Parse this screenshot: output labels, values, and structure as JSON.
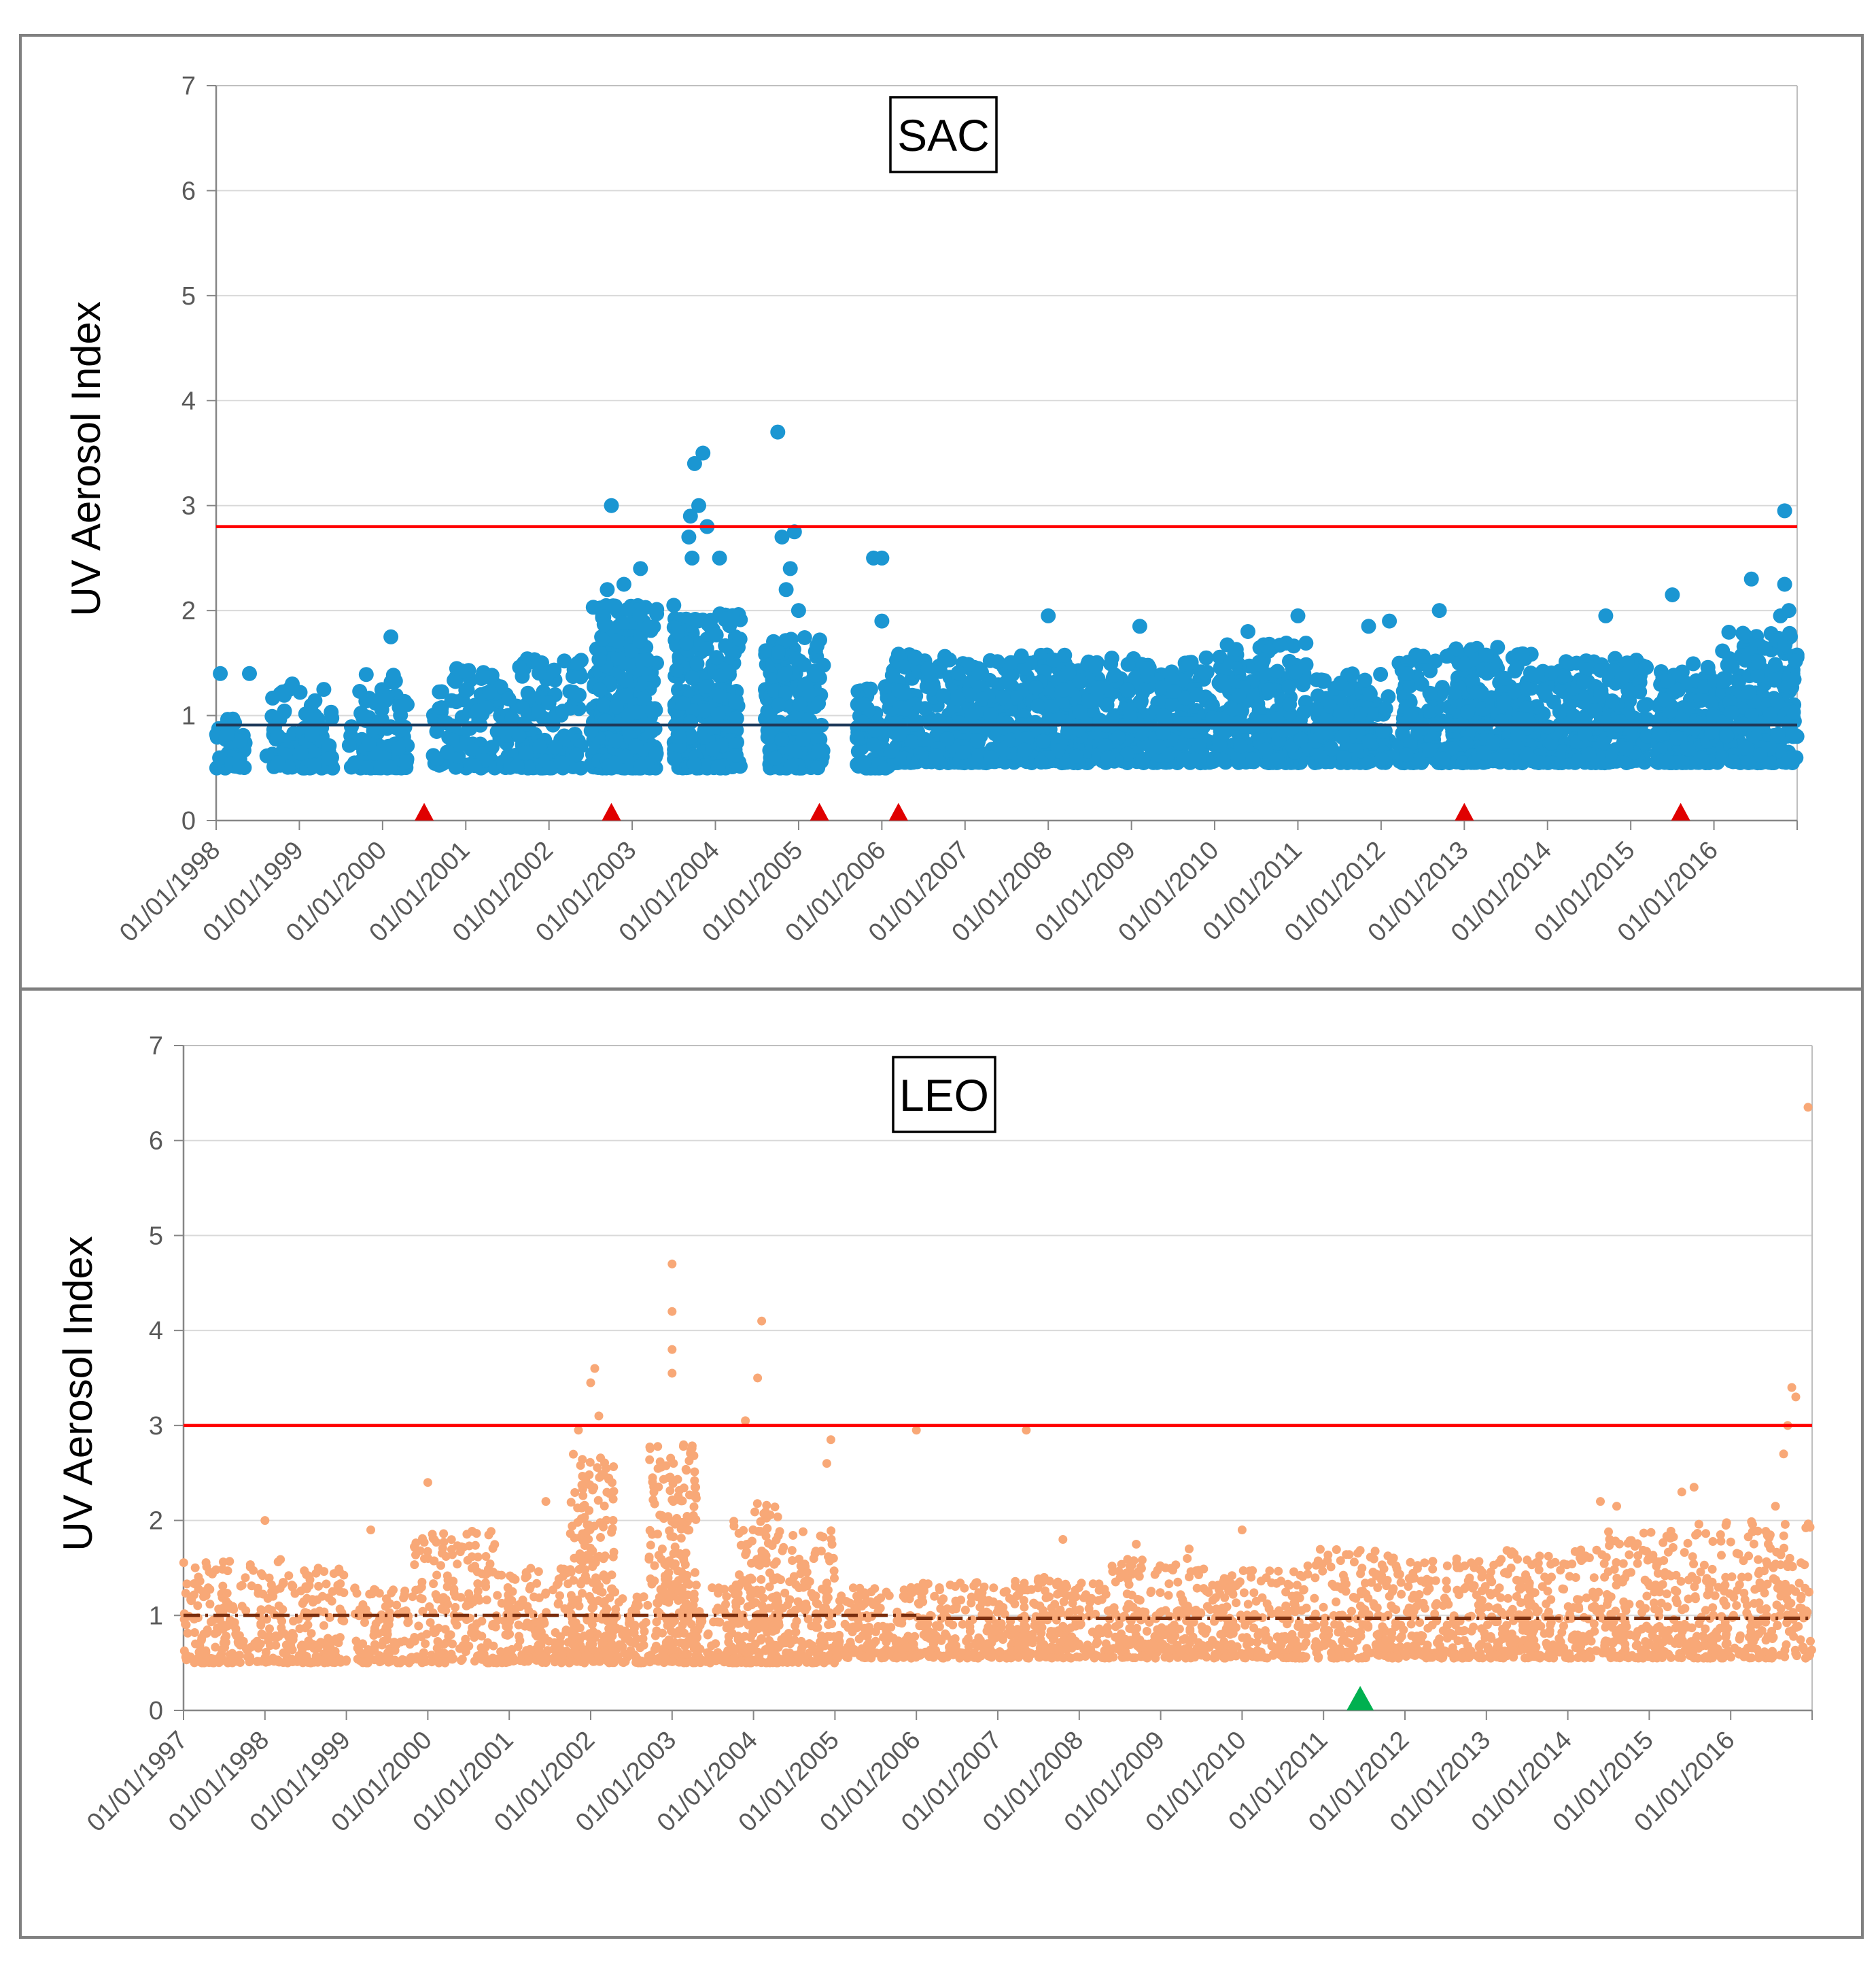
{
  "chart_data": [
    {
      "type": "scatter",
      "title": "SAC",
      "xlabel": "",
      "ylabel": "UV Aerosol Index",
      "ylim": [
        0,
        7
      ],
      "yticks": [
        "0",
        "1",
        "2",
        "3",
        "4",
        "5",
        "6",
        "7"
      ],
      "xlim_year": [
        1998.0,
        2017.0
      ],
      "xtick_labels": [
        "01/01/1998",
        "01/01/1999",
        "01/01/2000",
        "01/01/2001",
        "01/01/2002",
        "01/01/2003",
        "01/01/2004",
        "01/01/2005",
        "01/01/2006",
        "01/01/2007",
        "01/01/2008",
        "01/01/2009",
        "01/01/2010",
        "01/01/2011",
        "01/01/2012",
        "01/01/2013",
        "01/01/2014",
        "01/01/2015",
        "01/01/2016"
      ],
      "grid": true,
      "colors": {
        "points": "#1b96d2",
        "threshold": "#ff0000",
        "mean": "#1f3a5a",
        "marker": "#e00000"
      },
      "threshold_value": 2.8,
      "mean_segments": [
        {
          "x0": 1998.0,
          "x1": 2006.3,
          "value": 0.91
        },
        {
          "x0": 2006.3,
          "x1": 2017.0,
          "value": 0.91
        }
      ],
      "event_markers_year": [
        2000.5,
        2002.75,
        2005.25,
        2006.2,
        2013.0,
        2015.6
      ],
      "high_points": [
        {
          "x": 1998.05,
          "y": 1.4
        },
        {
          "x": 1998.4,
          "y": 1.4
        },
        {
          "x": 2000.1,
          "y": 1.75
        },
        {
          "x": 2002.75,
          "y": 3.0
        },
        {
          "x": 2002.7,
          "y": 2.2
        },
        {
          "x": 2002.9,
          "y": 2.25
        },
        {
          "x": 2003.1,
          "y": 2.4
        },
        {
          "x": 2003.5,
          "y": 2.05
        },
        {
          "x": 2003.75,
          "y": 3.4
        },
        {
          "x": 2003.85,
          "y": 3.5
        },
        {
          "x": 2003.8,
          "y": 3.0
        },
        {
          "x": 2003.7,
          "y": 2.9
        },
        {
          "x": 2003.68,
          "y": 2.7
        },
        {
          "x": 2003.72,
          "y": 2.5
        },
        {
          "x": 2003.9,
          "y": 2.8
        },
        {
          "x": 2004.05,
          "y": 2.5
        },
        {
          "x": 2004.75,
          "y": 3.7
        },
        {
          "x": 2004.8,
          "y": 2.7
        },
        {
          "x": 2004.95,
          "y": 2.75
        },
        {
          "x": 2004.9,
          "y": 2.4
        },
        {
          "x": 2004.85,
          "y": 2.2
        },
        {
          "x": 2005.0,
          "y": 2.0
        },
        {
          "x": 2006.0,
          "y": 2.5
        },
        {
          "x": 2005.9,
          "y": 2.5
        },
        {
          "x": 2006.0,
          "y": 1.9
        },
        {
          "x": 2008.0,
          "y": 1.95
        },
        {
          "x": 2009.1,
          "y": 1.85
        },
        {
          "x": 2010.4,
          "y": 1.8
        },
        {
          "x": 2011.0,
          "y": 1.95
        },
        {
          "x": 2011.85,
          "y": 1.85
        },
        {
          "x": 2012.1,
          "y": 1.9
        },
        {
          "x": 2012.7,
          "y": 2.0
        },
        {
          "x": 2013.4,
          "y": 1.65
        },
        {
          "x": 2014.7,
          "y": 1.95
        },
        {
          "x": 2015.5,
          "y": 2.15
        },
        {
          "x": 2016.45,
          "y": 2.3
        },
        {
          "x": 2016.85,
          "y": 2.95
        },
        {
          "x": 2016.85,
          "y": 2.25
        },
        {
          "x": 2016.8,
          "y": 1.95
        },
        {
          "x": 2016.9,
          "y": 2.0
        }
      ],
      "bulk_periods": [
        {
          "start": 1998.0,
          "end": 1998.35,
          "min": 0.5,
          "max": 1.0,
          "n": 45
        },
        {
          "start": 1998.6,
          "end": 1999.4,
          "min": 0.5,
          "max": 1.35,
          "n": 90
        },
        {
          "start": 1999.6,
          "end": 2000.3,
          "min": 0.5,
          "max": 1.4,
          "n": 110
        },
        {
          "start": 2000.6,
          "end": 2001.5,
          "min": 0.5,
          "max": 1.45,
          "n": 110
        },
        {
          "start": 2001.5,
          "end": 2002.4,
          "min": 0.5,
          "max": 1.55,
          "n": 130
        },
        {
          "start": 2002.5,
          "end": 2003.3,
          "min": 0.5,
          "max": 2.05,
          "n": 320
        },
        {
          "start": 2003.5,
          "end": 2004.3,
          "min": 0.5,
          "max": 2.0,
          "n": 300
        },
        {
          "start": 2004.6,
          "end": 2005.3,
          "min": 0.5,
          "max": 1.75,
          "n": 200
        },
        {
          "start": 2005.7,
          "end": 2006.1,
          "min": 0.5,
          "max": 1.3,
          "n": 80
        },
        {
          "start": 2006.1,
          "end": 2007.3,
          "min": 0.55,
          "max": 1.6,
          "n": 260
        },
        {
          "start": 2007.3,
          "end": 2008.6,
          "min": 0.55,
          "max": 1.6,
          "n": 280
        },
        {
          "start": 2008.6,
          "end": 2010.0,
          "min": 0.55,
          "max": 1.55,
          "n": 300
        },
        {
          "start": 2010.0,
          "end": 2011.1,
          "min": 0.55,
          "max": 1.7,
          "n": 240
        },
        {
          "start": 2011.2,
          "end": 2012.1,
          "min": 0.55,
          "max": 1.4,
          "n": 180
        },
        {
          "start": 2012.2,
          "end": 2013.2,
          "min": 0.55,
          "max": 1.65,
          "n": 230
        },
        {
          "start": 2013.2,
          "end": 2014.3,
          "min": 0.55,
          "max": 1.6,
          "n": 240
        },
        {
          "start": 2014.3,
          "end": 2015.2,
          "min": 0.55,
          "max": 1.55,
          "n": 220
        },
        {
          "start": 2015.3,
          "end": 2016.1,
          "min": 0.55,
          "max": 1.5,
          "n": 200
        },
        {
          "start": 2016.1,
          "end": 2017.0,
          "min": 0.55,
          "max": 1.8,
          "n": 240
        }
      ]
    },
    {
      "type": "scatter",
      "title": "LEO",
      "xlabel": "",
      "ylabel": "UV Aerosol Index",
      "ylim": [
        0,
        7
      ],
      "yticks": [
        "0",
        "1",
        "2",
        "3",
        "4",
        "5",
        "6",
        "7"
      ],
      "xlim_year": [
        1997.0,
        2017.0
      ],
      "xtick_labels": [
        "01/01/1997",
        "01/01/1998",
        "01/01/1999",
        "01/01/2000",
        "01/01/2001",
        "01/01/2002",
        "01/01/2003",
        "01/01/2004",
        "01/01/2005",
        "01/01/2006",
        "01/01/2007",
        "01/01/2008",
        "01/01/2009",
        "01/01/2010",
        "01/01/2011",
        "01/01/2012",
        "01/01/2013",
        "01/01/2014",
        "01/01/2015",
        "01/01/2016"
      ],
      "grid": true,
      "colors": {
        "points": "#f8a877",
        "threshold": "#ff0000",
        "mean": "#7a2e0e",
        "marker": "#00b050"
      },
      "threshold_value": 3.0,
      "mean_segments": [
        {
          "x0": 1997.0,
          "x1": 2006.0,
          "value": 1.0
        },
        {
          "x0": 2006.0,
          "x1": 2017.0,
          "value": 0.97
        }
      ],
      "event_markers_year": [
        2011.45
      ],
      "high_points": [
        {
          "x": 2016.95,
          "y": 6.35
        },
        {
          "x": 2003.0,
          "y": 4.7
        },
        {
          "x": 2003.0,
          "y": 4.2
        },
        {
          "x": 2004.1,
          "y": 4.1
        },
        {
          "x": 2003.0,
          "y": 3.8
        },
        {
          "x": 2002.05,
          "y": 3.6
        },
        {
          "x": 2002.0,
          "y": 3.45
        },
        {
          "x": 2004.05,
          "y": 3.5
        },
        {
          "x": 2003.0,
          "y": 3.55
        },
        {
          "x": 2002.1,
          "y": 3.1
        },
        {
          "x": 2003.9,
          "y": 3.05
        },
        {
          "x": 2004.95,
          "y": 2.85
        },
        {
          "x": 2006.0,
          "y": 2.95
        },
        {
          "x": 2007.35,
          "y": 2.95
        },
        {
          "x": 2016.75,
          "y": 3.4
        },
        {
          "x": 2016.8,
          "y": 3.3
        },
        {
          "x": 2016.7,
          "y": 3.0
        },
        {
          "x": 2016.65,
          "y": 2.7
        },
        {
          "x": 2016.55,
          "y": 2.15
        },
        {
          "x": 2001.85,
          "y": 2.95
        },
        {
          "x": 2004.9,
          "y": 2.6
        },
        {
          "x": 2000.0,
          "y": 2.4
        },
        {
          "x": 2001.45,
          "y": 2.2
        },
        {
          "x": 2014.4,
          "y": 2.2
        },
        {
          "x": 2014.6,
          "y": 2.15
        },
        {
          "x": 2015.55,
          "y": 2.35
        },
        {
          "x": 2015.4,
          "y": 2.3
        },
        {
          "x": 1998.0,
          "y": 2.0
        },
        {
          "x": 1999.3,
          "y": 1.9
        },
        {
          "x": 2010.0,
          "y": 1.9
        },
        {
          "x": 2007.8,
          "y": 1.8
        },
        {
          "x": 2008.7,
          "y": 1.75
        },
        {
          "x": 2009.35,
          "y": 1.7
        }
      ],
      "bulk_periods": [
        {
          "start": 1997.0,
          "end": 1998.2,
          "min": 0.5,
          "max": 1.6,
          "n": 200
        },
        {
          "start": 1998.2,
          "end": 1999.0,
          "min": 0.5,
          "max": 1.5,
          "n": 140
        },
        {
          "start": 1999.1,
          "end": 1999.8,
          "min": 0.5,
          "max": 1.3,
          "n": 100
        },
        {
          "start": 1999.8,
          "end": 2000.9,
          "min": 0.5,
          "max": 1.9,
          "n": 200
        },
        {
          "start": 2000.9,
          "end": 2001.8,
          "min": 0.5,
          "max": 1.5,
          "n": 170
        },
        {
          "start": 2001.75,
          "end": 2002.3,
          "min": 0.5,
          "max": 2.7,
          "n": 230
        },
        {
          "start": 2002.3,
          "end": 2002.7,
          "min": 0.5,
          "max": 1.2,
          "n": 60
        },
        {
          "start": 2002.7,
          "end": 2003.3,
          "min": 0.5,
          "max": 2.8,
          "n": 260
        },
        {
          "start": 2003.3,
          "end": 2003.75,
          "min": 0.5,
          "max": 1.3,
          "n": 70
        },
        {
          "start": 2003.75,
          "end": 2004.3,
          "min": 0.5,
          "max": 2.2,
          "n": 200
        },
        {
          "start": 2004.3,
          "end": 2005.0,
          "min": 0.5,
          "max": 1.9,
          "n": 160
        },
        {
          "start": 2005.0,
          "end": 2006.0,
          "min": 0.55,
          "max": 1.3,
          "n": 180
        },
        {
          "start": 2006.0,
          "end": 2007.2,
          "min": 0.55,
          "max": 1.35,
          "n": 200
        },
        {
          "start": 2007.2,
          "end": 2008.4,
          "min": 0.55,
          "max": 1.4,
          "n": 210
        },
        {
          "start": 2008.4,
          "end": 2009.6,
          "min": 0.55,
          "max": 1.6,
          "n": 230
        },
        {
          "start": 2009.6,
          "end": 2010.8,
          "min": 0.55,
          "max": 1.5,
          "n": 220
        },
        {
          "start": 2010.8,
          "end": 2012.0,
          "min": 0.55,
          "max": 1.7,
          "n": 220
        },
        {
          "start": 2012.0,
          "end": 2013.2,
          "min": 0.55,
          "max": 1.6,
          "n": 220
        },
        {
          "start": 2013.2,
          "end": 2014.4,
          "min": 0.55,
          "max": 1.7,
          "n": 230
        },
        {
          "start": 2014.4,
          "end": 2015.6,
          "min": 0.55,
          "max": 1.9,
          "n": 240
        },
        {
          "start": 2015.6,
          "end": 2017.0,
          "min": 0.55,
          "max": 2.0,
          "n": 250
        }
      ]
    }
  ]
}
